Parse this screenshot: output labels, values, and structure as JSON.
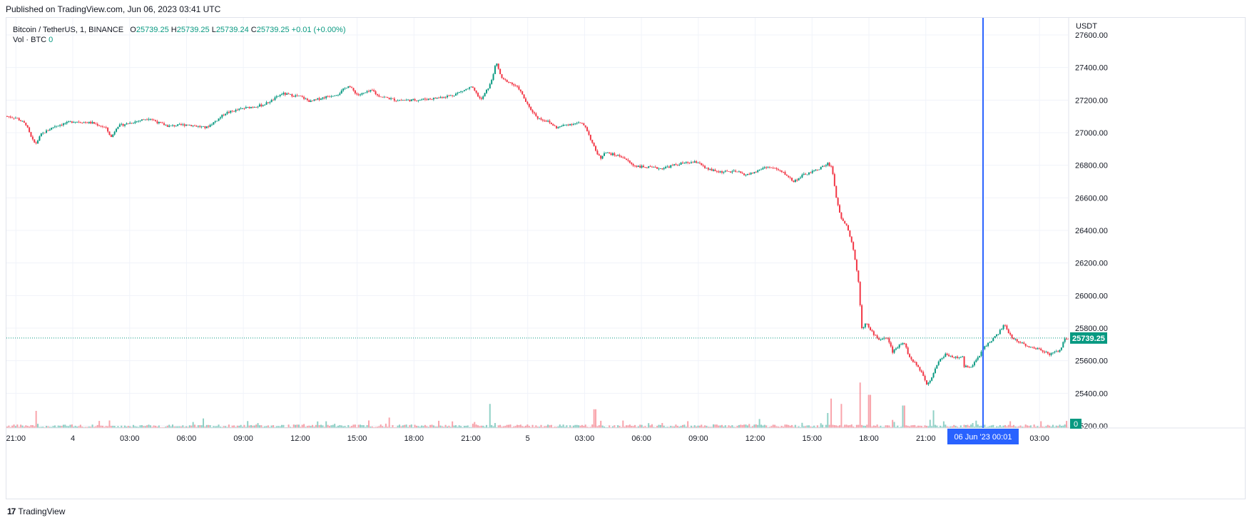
{
  "published": "Published on TradingView.com, Jun 06, 2023 03:41 UTC",
  "legend": {
    "symbol": "Bitcoin / TetherUS, 1, BINANCE",
    "o_label": "O",
    "o": "25739.25",
    "h_label": "H",
    "h": "25739.25",
    "l_label": "L",
    "l": "25739.24",
    "c_label": "C",
    "c": "25739.25",
    "change": "+0.01 (+0.00%)"
  },
  "vol_legend": {
    "label": "Vol · BTC",
    "value": "0"
  },
  "footer": {
    "brand": "TradingView",
    "mark": "17"
  },
  "colors": {
    "up": "#089981",
    "down": "#f23645",
    "crosshair": "#2962ff",
    "grid": "#f0f3fa",
    "text": "#131722"
  },
  "chart_data": {
    "type": "candlestick",
    "symbol": "BTCUSDT",
    "interval": "1",
    "exchange": "BINANCE",
    "yaxis_unit": "USDT",
    "yticks": [
      "27600.00",
      "27400.00",
      "27200.00",
      "27000.00",
      "26800.00",
      "26600.00",
      "26400.00",
      "26200.00",
      "26000.00",
      "25800.00",
      "25600.00",
      "25400.00",
      "25200.00"
    ],
    "ylim": [
      25200,
      27600
    ],
    "xticks": [
      "21:00",
      "4",
      "03:00",
      "06:00",
      "09:00",
      "12:00",
      "15:00",
      "18:00",
      "21:00",
      "5",
      "03:00",
      "06:00",
      "09:00",
      "12:00",
      "15:00",
      "18:00",
      "21:00",
      "03:00"
    ],
    "xtick_hours": [
      0,
      3,
      6,
      9,
      12,
      15,
      18,
      21,
      24,
      27,
      30,
      33,
      36,
      39,
      42,
      45,
      48,
      54
    ],
    "xlim_hours": [
      -0.5,
      55.5
    ],
    "crosshair_label": "06 Jun '23   00:01",
    "crosshair_hour": 51.02,
    "last_price": 25739.25,
    "last_price_label": "25739.25",
    "last_volume_label": "0",
    "close_path": [
      [
        -0.5,
        27100
      ],
      [
        0,
        27090
      ],
      [
        0.5,
        27050
      ],
      [
        0.8,
        26960
      ],
      [
        1.0,
        26930
      ],
      [
        1.3,
        26990
      ],
      [
        2,
        27040
      ],
      [
        3,
        27070
      ],
      [
        4,
        27060
      ],
      [
        4.7,
        27030
      ],
      [
        5,
        26970
      ],
      [
        5.3,
        27040
      ],
      [
        6,
        27060
      ],
      [
        7,
        27090
      ],
      [
        7.5,
        27060
      ],
      [
        8,
        27040
      ],
      [
        9,
        27050
      ],
      [
        10,
        27030
      ],
      [
        10.6,
        27080
      ],
      [
        11,
        27120
      ],
      [
        12,
        27150
      ],
      [
        13,
        27170
      ],
      [
        13.5,
        27200
      ],
      [
        14,
        27240
      ],
      [
        15,
        27220
      ],
      [
        15.5,
        27190
      ],
      [
        16,
        27210
      ],
      [
        17,
        27240
      ],
      [
        17.5,
        27290
      ],
      [
        18,
        27230
      ],
      [
        18.8,
        27260
      ],
      [
        19,
        27230
      ],
      [
        20,
        27200
      ],
      [
        21,
        27200
      ],
      [
        22,
        27210
      ],
      [
        23,
        27230
      ],
      [
        24,
        27280
      ],
      [
        24.5,
        27200
      ],
      [
        25,
        27300
      ],
      [
        25.3,
        27430
      ],
      [
        25.6,
        27330
      ],
      [
        26,
        27310
      ],
      [
        26.5,
        27270
      ],
      [
        27,
        27160
      ],
      [
        27.5,
        27090
      ],
      [
        28,
        27070
      ],
      [
        28.5,
        27030
      ],
      [
        29,
        27050
      ],
      [
        29.7,
        27060
      ],
      [
        30,
        27040
      ],
      [
        30.5,
        26900
      ],
      [
        30.8,
        26840
      ],
      [
        31,
        26880
      ],
      [
        32,
        26850
      ],
      [
        32.5,
        26800
      ],
      [
        33,
        26790
      ],
      [
        34,
        26780
      ],
      [
        35,
        26810
      ],
      [
        36,
        26820
      ],
      [
        36.3,
        26780
      ],
      [
        37,
        26760
      ],
      [
        38,
        26760
      ],
      [
        38.5,
        26740
      ],
      [
        39,
        26760
      ],
      [
        39.5,
        26790
      ],
      [
        40,
        26780
      ],
      [
        40.5,
        26750
      ],
      [
        41,
        26700
      ],
      [
        41.5,
        26740
      ],
      [
        42,
        26760
      ],
      [
        42.5,
        26790
      ],
      [
        42.8,
        26810
      ],
      [
        43,
        26790
      ],
      [
        43.3,
        26560
      ],
      [
        43.5,
        26480
      ],
      [
        43.8,
        26430
      ],
      [
        44.1,
        26310
      ],
      [
        44.4,
        26100
      ],
      [
        44.6,
        25790
      ],
      [
        44.8,
        25840
      ],
      [
        45,
        25790
      ],
      [
        45.5,
        25730
      ],
      [
        45.8,
        25740
      ],
      [
        46,
        25730
      ],
      [
        46.2,
        25650
      ],
      [
        46.5,
        25690
      ],
      [
        46.8,
        25720
      ],
      [
        47.1,
        25620
      ],
      [
        47.5,
        25570
      ],
      [
        47.8,
        25520
      ],
      [
        48,
        25460
      ],
      [
        48.2,
        25480
      ],
      [
        48.6,
        25590
      ],
      [
        49,
        25640
      ],
      [
        49.5,
        25620
      ],
      [
        49.9,
        25620
      ],
      [
        50,
        25560
      ],
      [
        50.4,
        25570
      ],
      [
        50.8,
        25630
      ],
      [
        51,
        25680
      ],
      [
        51.3,
        25710
      ],
      [
        51.8,
        25770
      ],
      [
        52.1,
        25820
      ],
      [
        52.5,
        25740
      ],
      [
        53,
        25710
      ],
      [
        53.5,
        25680
      ],
      [
        54,
        25670
      ],
      [
        54.5,
        25640
      ],
      [
        55,
        25660
      ],
      [
        55.3,
        25730
      ],
      [
        55.5,
        25740
      ]
    ],
    "volume_spikes": [
      [
        1,
        0.32
      ],
      [
        25,
        0.45
      ],
      [
        30.5,
        0.35
      ],
      [
        42.8,
        0.28
      ],
      [
        43,
        0.55
      ],
      [
        43.5,
        0.45
      ],
      [
        44.5,
        0.85
      ],
      [
        45,
        0.62
      ],
      [
        46.8,
        0.42
      ],
      [
        48.4,
        0.33
      ]
    ]
  }
}
